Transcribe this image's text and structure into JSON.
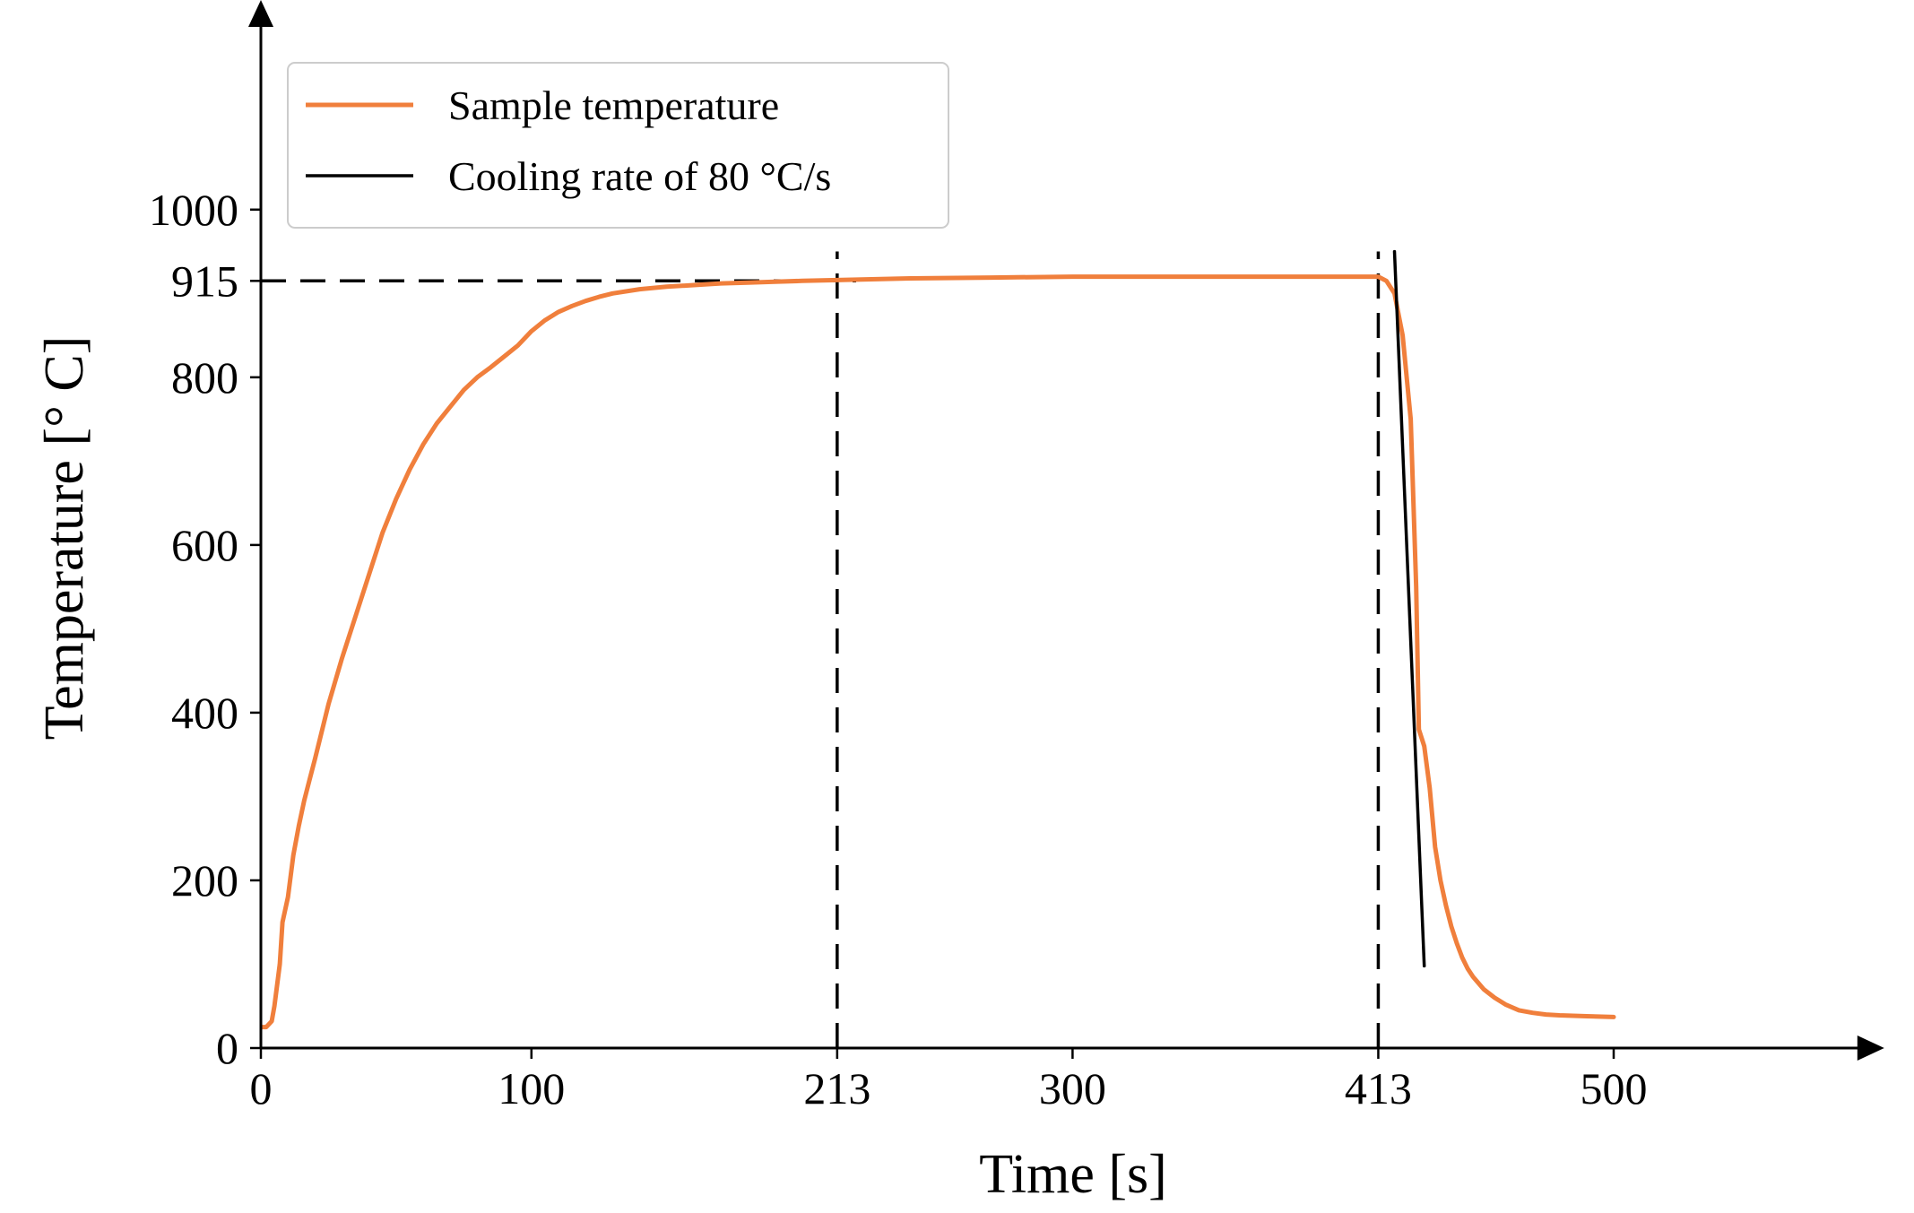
{
  "chart_data": {
    "type": "line",
    "title": "",
    "xlabel": "Time [s]",
    "ylabel": "Temperature [° C]",
    "xlim": [
      0,
      600
    ],
    "ylim": [
      0,
      1250
    ],
    "xticks": [
      {
        "value": 0,
        "label": "0"
      },
      {
        "value": 100,
        "label": "100"
      },
      {
        "value": 213,
        "label": "213"
      },
      {
        "value": 300,
        "label": "300"
      },
      {
        "value": 413,
        "label": "413"
      },
      {
        "value": 500,
        "label": "500"
      }
    ],
    "yticks": [
      {
        "value": 0,
        "label": "0"
      },
      {
        "value": 200,
        "label": "200"
      },
      {
        "value": 400,
        "label": "400"
      },
      {
        "value": 600,
        "label": "600"
      },
      {
        "value": 800,
        "label": "800"
      },
      {
        "value": 915,
        "label": "915"
      },
      {
        "value": 1000,
        "label": "1000"
      }
    ],
    "grid": false,
    "legend_position": "top-left",
    "series": [
      {
        "name": "Sample temperature",
        "color": "#f07f3c",
        "x": [
          0,
          2,
          4,
          5,
          7,
          8,
          10,
          12,
          14,
          16,
          18,
          20,
          25,
          30,
          35,
          40,
          45,
          50,
          55,
          60,
          65,
          70,
          75,
          80,
          85,
          90,
          95,
          100,
          105,
          110,
          115,
          120,
          125,
          130,
          140,
          150,
          160,
          170,
          180,
          190,
          200,
          213,
          240,
          270,
          300,
          350,
          380,
          400,
          410,
          413,
          416,
          419,
          422,
          425,
          427,
          428,
          430,
          432,
          434,
          436,
          438,
          440,
          442,
          444,
          446,
          448,
          452,
          456,
          460,
          465,
          470,
          475,
          480,
          490,
          500
        ],
        "y": [
          25,
          25,
          32,
          50,
          100,
          150,
          180,
          230,
          265,
          295,
          320,
          345,
          410,
          465,
          515,
          565,
          615,
          655,
          690,
          720,
          745,
          765,
          785,
          800,
          812,
          825,
          838,
          855,
          868,
          878,
          885,
          891,
          896,
          900,
          905,
          908,
          910,
          912,
          913,
          914,
          915,
          916,
          918,
          919,
          920,
          920,
          920,
          920,
          920,
          920,
          915,
          900,
          850,
          750,
          550,
          380,
          360,
          310,
          240,
          200,
          170,
          145,
          125,
          108,
          95,
          85,
          70,
          60,
          52,
          45,
          42,
          40,
          39,
          38,
          37
        ]
      },
      {
        "name": "Cooling rate of 80 °C/s",
        "color": "#000000",
        "x": [
          419,
          430
        ],
        "y": [
          950,
          98
        ]
      }
    ],
    "reference_lines": [
      {
        "orientation": "horizontal",
        "value": 915,
        "from": 0,
        "to": 220,
        "style": "dashed"
      },
      {
        "orientation": "vertical",
        "value": 213,
        "from": 0,
        "to": 950,
        "style": "dashed"
      },
      {
        "orientation": "vertical",
        "value": 413,
        "from": 0,
        "to": 950,
        "style": "dashed"
      }
    ]
  }
}
